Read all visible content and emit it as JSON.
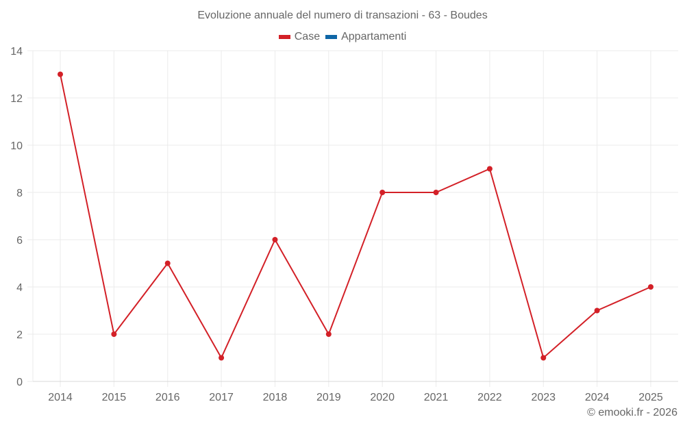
{
  "chart_data": {
    "type": "line",
    "title": "Evoluzione annuale del numero di transazioni - 63 - Boudes",
    "categories": [
      "2014",
      "2015",
      "2016",
      "2017",
      "2018",
      "2019",
      "2020",
      "2021",
      "2022",
      "2023",
      "2024",
      "2025"
    ],
    "series": [
      {
        "name": "Case",
        "color": "#d32027",
        "values": [
          13,
          2,
          5,
          1,
          6,
          2,
          8,
          8,
          9,
          1,
          3,
          4
        ]
      },
      {
        "name": "Appartamenti",
        "color": "#0f66a6",
        "values": []
      }
    ],
    "xlabel": "",
    "ylabel": "",
    "ylim": [
      0,
      14
    ],
    "yticks": [
      0,
      2,
      4,
      6,
      8,
      10,
      12,
      14
    ],
    "grid": true,
    "legend_position": "top"
  },
  "header": {
    "title": "Evoluzione annuale del numero di transazioni - 63 - Boudes"
  },
  "legend": {
    "items": [
      {
        "label": "Case",
        "color": "#d32027"
      },
      {
        "label": "Appartamenti",
        "color": "#0f66a6"
      }
    ]
  },
  "footer": {
    "credit": "© emooki.fr - 2026"
  }
}
